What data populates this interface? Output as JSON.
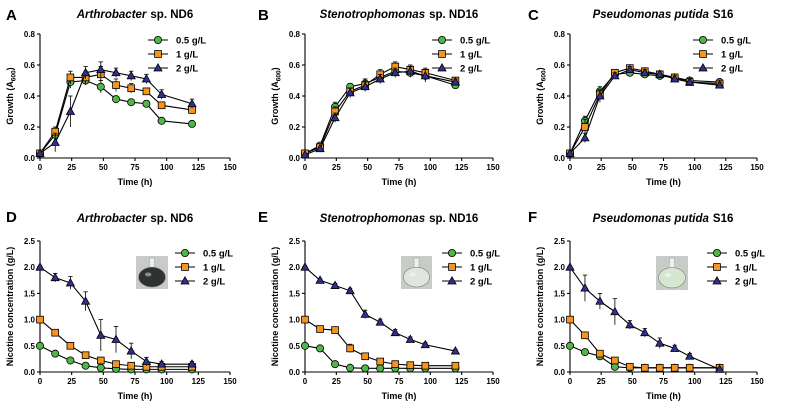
{
  "figure": {
    "series_names": [
      "0.5 g/L",
      "1 g/L",
      "2 g/L"
    ],
    "series_colors": [
      "#4db848",
      "#f7941d",
      "#2e3192"
    ],
    "markers": [
      "circle",
      "square",
      "triangle"
    ],
    "line_color": "#000000",
    "flask_colors": {
      "D": "#2f3230",
      "E": "#dfe6df",
      "F": "#d6e7cf"
    },
    "flask_descriptions": {
      "D": "Dark culture flask",
      "E": "Pale culture flask",
      "F": "Light green culture flask"
    }
  },
  "chart_data": [
    {
      "panel": "A",
      "type": "line",
      "title": "Arthrobacter",
      "title_suffix": "sp. ND6",
      "xlabel": "Time (h)",
      "ylabel": "Growth (A600)",
      "ylabel_main": "Growth (A",
      "ylabel_sub": "600",
      "ylabel_close": ")",
      "xlim": [
        0,
        150
      ],
      "ylim": [
        0,
        0.8
      ],
      "xticks": [
        0,
        25,
        50,
        75,
        100,
        125,
        150
      ],
      "xtick_labels": [
        "0",
        "25",
        "50",
        "75",
        "100",
        "125",
        "150"
      ],
      "yticks": [
        0,
        0.2,
        0.4,
        0.6,
        0.8
      ],
      "ytick_labels": [
        "0.0",
        "0.2",
        "0.4",
        "0.6",
        "0.8"
      ],
      "legend": "top-right",
      "x": [
        0,
        12,
        24,
        36,
        48,
        60,
        72,
        84,
        96,
        120
      ],
      "series": [
        {
          "name": "0.5 g/L",
          "values": [
            0.03,
            0.15,
            0.49,
            0.5,
            0.46,
            0.38,
            0.36,
            0.35,
            0.24,
            0.22
          ],
          "errors": [
            0.01,
            0.03,
            0.04,
            0.03,
            0.04,
            0.02,
            0.02,
            0.02,
            0.01,
            0.01
          ]
        },
        {
          "name": "1 g/L",
          "values": [
            0.03,
            0.17,
            0.52,
            0.52,
            0.54,
            0.47,
            0.45,
            0.43,
            0.34,
            0.31
          ],
          "errors": [
            0.01,
            0.03,
            0.04,
            0.04,
            0.05,
            0.04,
            0.03,
            0.02,
            0.02,
            0.02
          ]
        },
        {
          "name": "2 g/L",
          "values": [
            0.03,
            0.1,
            0.3,
            0.55,
            0.57,
            0.55,
            0.53,
            0.51,
            0.41,
            0.35
          ],
          "errors": [
            0.01,
            0.06,
            0.1,
            0.04,
            0.05,
            0.03,
            0.03,
            0.03,
            0.03,
            0.03
          ]
        }
      ]
    },
    {
      "panel": "B",
      "type": "line",
      "title": "Stenotrophomonas",
      "title_suffix": "sp. ND16",
      "xlabel": "Time (h)",
      "ylabel": "Growth (A600)",
      "ylabel_main": "Growth (A",
      "ylabel_sub": "600",
      "ylabel_close": ")",
      "xlim": [
        0,
        150
      ],
      "ylim": [
        0,
        0.8
      ],
      "xticks": [
        0,
        25,
        50,
        75,
        100,
        125,
        150
      ],
      "xtick_labels": [
        "0",
        "25",
        "50",
        "75",
        "100",
        "125",
        "150"
      ],
      "yticks": [
        0,
        0.2,
        0.4,
        0.6,
        0.8
      ],
      "ytick_labels": [
        "0.0",
        "0.2",
        "0.4",
        "0.6",
        "0.8"
      ],
      "legend": "top-right",
      "x": [
        0,
        12,
        24,
        36,
        48,
        60,
        72,
        84,
        96,
        120
      ],
      "series": [
        {
          "name": "0.5 g/L",
          "values": [
            0.03,
            0.08,
            0.33,
            0.46,
            0.48,
            0.52,
            0.56,
            0.55,
            0.53,
            0.47
          ],
          "errors": [
            0.01,
            0.01,
            0.03,
            0.02,
            0.03,
            0.03,
            0.02,
            0.03,
            0.03,
            0.02
          ]
        },
        {
          "name": "1 g/L",
          "values": [
            0.03,
            0.07,
            0.3,
            0.43,
            0.47,
            0.54,
            0.59,
            0.57,
            0.55,
            0.5
          ],
          "errors": [
            0.01,
            0.01,
            0.03,
            0.02,
            0.04,
            0.03,
            0.03,
            0.03,
            0.03,
            0.02
          ]
        },
        {
          "name": "2 g/L",
          "values": [
            0.02,
            0.06,
            0.26,
            0.42,
            0.46,
            0.51,
            0.55,
            0.56,
            0.53,
            0.49
          ],
          "errors": [
            0.01,
            0.01,
            0.03,
            0.03,
            0.03,
            0.03,
            0.03,
            0.03,
            0.04,
            0.02
          ]
        }
      ]
    },
    {
      "panel": "C",
      "type": "line",
      "title": "Pseudomonas putida",
      "title_suffix": "S16",
      "xlabel": "Time (h)",
      "ylabel": "Growth (A600)",
      "ylabel_main": "Growth (A",
      "ylabel_sub": "600",
      "ylabel_close": ")",
      "xlim": [
        0,
        150
      ],
      "ylim": [
        0,
        0.8
      ],
      "xticks": [
        0,
        25,
        50,
        75,
        100,
        125,
        150
      ],
      "xtick_labels": [
        "0",
        "25",
        "50",
        "75",
        "100",
        "125",
        "150"
      ],
      "yticks": [
        0,
        0.2,
        0.4,
        0.6,
        0.8
      ],
      "ytick_labels": [
        "0.0",
        "0.2",
        "0.4",
        "0.6",
        "0.8"
      ],
      "legend": "top-right",
      "x": [
        0,
        12,
        24,
        36,
        48,
        60,
        72,
        84,
        96,
        120
      ],
      "series": [
        {
          "name": "0.5 g/L",
          "values": [
            0.03,
            0.24,
            0.43,
            0.54,
            0.55,
            0.54,
            0.53,
            0.52,
            0.5,
            0.49
          ],
          "errors": [
            0.01,
            0.03,
            0.03,
            0.02,
            0.02,
            0.02,
            0.02,
            0.02,
            0.02,
            0.02
          ]
        },
        {
          "name": "1 g/L",
          "values": [
            0.03,
            0.2,
            0.41,
            0.55,
            0.58,
            0.56,
            0.54,
            0.52,
            0.49,
            0.48
          ],
          "errors": [
            0.01,
            0.05,
            0.03,
            0.02,
            0.02,
            0.02,
            0.02,
            0.02,
            0.02,
            0.02
          ]
        },
        {
          "name": "2 g/L",
          "values": [
            0.03,
            0.13,
            0.4,
            0.53,
            0.57,
            0.55,
            0.54,
            0.51,
            0.49,
            0.47
          ],
          "errors": [
            0.01,
            0.03,
            0.04,
            0.02,
            0.02,
            0.02,
            0.02,
            0.02,
            0.02,
            0.02
          ]
        }
      ]
    },
    {
      "panel": "D",
      "type": "line",
      "title": "Arthrobacter",
      "title_suffix": "sp. ND6",
      "xlabel": "Time (h)",
      "ylabel": "Nicotine concentration (g/L)",
      "xlim": [
        0,
        150
      ],
      "ylim": [
        0,
        2.5
      ],
      "xticks": [
        0,
        25,
        50,
        75,
        100,
        125,
        150
      ],
      "xtick_labels": [
        "0",
        "25",
        "50",
        "75",
        "100",
        "125",
        "150"
      ],
      "yticks": [
        0,
        0.5,
        1.0,
        1.5,
        2.0,
        2.5
      ],
      "ytick_labels": [
        "0.0",
        "0.5",
        "1.0",
        "1.5",
        "2.0",
        "2.5"
      ],
      "legend": "top-right",
      "x": [
        0,
        12,
        24,
        36,
        48,
        60,
        72,
        84,
        96,
        120
      ],
      "series": [
        {
          "name": "0.5 g/L",
          "values": [
            0.5,
            0.35,
            0.22,
            0.12,
            0.08,
            0.06,
            0.05,
            0.05,
            0.05,
            0.05
          ],
          "errors": [
            0.02,
            0.02,
            0.02,
            0.02,
            0.01,
            0.01,
            0.01,
            0.01,
            0.01,
            0.01
          ]
        },
        {
          "name": "1 g/L",
          "values": [
            1.0,
            0.75,
            0.5,
            0.32,
            0.22,
            0.15,
            0.12,
            0.1,
            0.1,
            0.1
          ],
          "errors": [
            0.02,
            0.03,
            0.05,
            0.05,
            0.03,
            0.02,
            0.02,
            0.02,
            0.02,
            0.02
          ]
        },
        {
          "name": "2 g/L",
          "values": [
            2.0,
            1.8,
            1.7,
            1.35,
            0.7,
            0.62,
            0.4,
            0.2,
            0.15,
            0.15
          ],
          "errors": [
            0.02,
            0.08,
            0.12,
            0.18,
            0.3,
            0.25,
            0.15,
            0.08,
            0.05,
            0.05
          ]
        }
      ]
    },
    {
      "panel": "E",
      "type": "line",
      "title": "Stenotrophomonas",
      "title_suffix": "sp. ND16",
      "xlabel": "Time (h)",
      "ylabel": "Nicotine concentration (g/L)",
      "xlim": [
        0,
        150
      ],
      "ylim": [
        0,
        2.5
      ],
      "xticks": [
        0,
        25,
        50,
        75,
        100,
        125,
        150
      ],
      "xtick_labels": [
        "0",
        "25",
        "50",
        "75",
        "100",
        "125",
        "150"
      ],
      "yticks": [
        0,
        0.5,
        1.0,
        1.5,
        2.0,
        2.5
      ],
      "ytick_labels": [
        "0.0",
        "0.5",
        "1.0",
        "1.5",
        "2.0",
        "2.5"
      ],
      "legend": "top-right",
      "x": [
        0,
        12,
        24,
        36,
        48,
        60,
        72,
        84,
        96,
        120
      ],
      "series": [
        {
          "name": "0.5 g/L",
          "values": [
            0.5,
            0.45,
            0.15,
            0.08,
            0.07,
            0.07,
            0.07,
            0.07,
            0.07,
            0.07
          ],
          "errors": [
            0.02,
            0.02,
            0.02,
            0.01,
            0.01,
            0.01,
            0.01,
            0.01,
            0.01,
            0.01
          ]
        },
        {
          "name": "1 g/L",
          "values": [
            1.0,
            0.82,
            0.8,
            0.45,
            0.3,
            0.2,
            0.15,
            0.13,
            0.12,
            0.12
          ],
          "errors": [
            0.02,
            0.02,
            0.05,
            0.08,
            0.04,
            0.03,
            0.02,
            0.02,
            0.02,
            0.02
          ]
        },
        {
          "name": "2 g/L",
          "values": [
            2.0,
            1.75,
            1.65,
            1.55,
            1.1,
            0.95,
            0.75,
            0.62,
            0.52,
            0.4
          ],
          "errors": [
            0.02,
            0.03,
            0.04,
            0.05,
            0.08,
            0.06,
            0.06,
            0.05,
            0.04,
            0.03
          ]
        }
      ]
    },
    {
      "panel": "F",
      "type": "line",
      "title": "Pseudomonas putida",
      "title_suffix": "S16",
      "xlabel": "Time (h)",
      "ylabel": "Nicotine concentration (g/L)",
      "xlim": [
        0,
        150
      ],
      "ylim": [
        0,
        2.5
      ],
      "xticks": [
        0,
        25,
        50,
        75,
        100,
        125,
        150
      ],
      "xtick_labels": [
        "0",
        "25",
        "50",
        "75",
        "100",
        "125",
        "150"
      ],
      "yticks": [
        0,
        0.5,
        1.0,
        1.5,
        2.0,
        2.5
      ],
      "ytick_labels": [
        "0.0",
        "0.5",
        "1.0",
        "1.5",
        "2.0",
        "2.5"
      ],
      "legend": "top-right",
      "x": [
        0,
        12,
        24,
        36,
        48,
        60,
        72,
        84,
        96,
        120
      ],
      "series": [
        {
          "name": "0.5 g/L",
          "values": [
            0.5,
            0.38,
            0.3,
            0.1,
            0.08,
            0.08,
            0.08,
            0.08,
            0.08,
            0.08
          ],
          "errors": [
            0.02,
            0.02,
            0.03,
            0.02,
            0.01,
            0.01,
            0.01,
            0.01,
            0.01,
            0.01
          ]
        },
        {
          "name": "1 g/L",
          "values": [
            1.0,
            0.7,
            0.35,
            0.22,
            0.1,
            0.08,
            0.08,
            0.08,
            0.08,
            0.08
          ],
          "errors": [
            0.02,
            0.04,
            0.05,
            0.05,
            0.02,
            0.01,
            0.01,
            0.01,
            0.01,
            0.01
          ]
        },
        {
          "name": "2 g/L",
          "values": [
            2.0,
            1.6,
            1.35,
            1.15,
            0.9,
            0.75,
            0.55,
            0.45,
            0.3,
            0.05
          ],
          "errors": [
            0.02,
            0.25,
            0.15,
            0.25,
            0.08,
            0.08,
            0.1,
            0.06,
            0.05,
            0.03
          ]
        }
      ]
    }
  ]
}
